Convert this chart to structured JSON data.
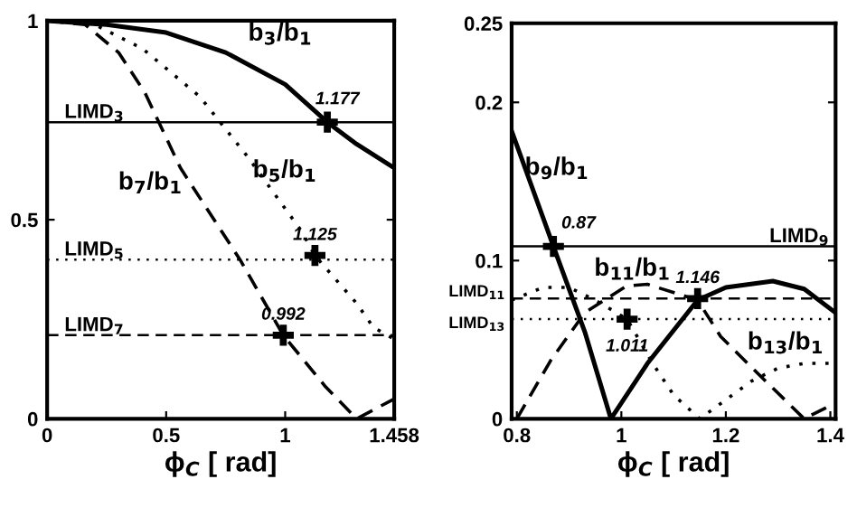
{
  "chart_data": [
    {
      "type": "line",
      "xlabel": "ϕ$_{C}$ [ rad]",
      "xlim": [
        0,
        1.458
      ],
      "ylim": [
        0,
        1
      ],
      "xticks": [
        0,
        0.5,
        1,
        1.458
      ],
      "yticks": [
        0,
        0.5,
        1
      ],
      "grid": false,
      "series": [
        {
          "name": "b$_{3}$/b$_{1}$",
          "color": "#000000",
          "line_style": "solid",
          "x": [
            0,
            0.25,
            0.5,
            0.75,
            1.0,
            1.177,
            1.3,
            1.458
          ],
          "values": [
            1,
            0.99,
            0.97,
            0.92,
            0.84,
            0.745,
            0.69,
            0.63
          ]
        },
        {
          "name": "b$_{5}$/b$_{1}$",
          "color": "#000000",
          "line_style": "dotted",
          "x": [
            0,
            0.2,
            0.4,
            0.64,
            0.84,
            1.07,
            1.125,
            1.3,
            1.37,
            1.458
          ],
          "values": [
            1,
            0.99,
            0.93,
            0.81,
            0.66,
            0.47,
            0.41,
            0.29,
            0.23,
            0.2
          ]
        },
        {
          "name": "b$_{7}$/b$_{1}$",
          "color": "#000000",
          "line_style": "dashed",
          "x": [
            0,
            0.16,
            0.3,
            0.41,
            0.56,
            0.81,
            0.992,
            1.17,
            1.3,
            1.458
          ],
          "values": [
            1,
            0.99,
            0.92,
            0.82,
            0.63,
            0.4,
            0.21,
            0.08,
            0,
            0.05
          ]
        },
        {
          "type": "scatter",
          "marker": "cross",
          "color": "#000000",
          "x": [
            1.177,
            1.125,
            0.992
          ],
          "values": [
            0.745,
            0.41,
            0.21
          ]
        }
      ],
      "ref_lines": [
        {
          "axis": "y",
          "value": 0.745,
          "label": "LIMD$_{3}$",
          "line_style": "solid"
        },
        {
          "axis": "y",
          "value": 0.4,
          "label": "LIMD$_{5}$",
          "line_style": "dotted"
        },
        {
          "axis": "y",
          "value": 0.21,
          "label": "LIMD$_{7}$",
          "line_style": "dashed"
        }
      ],
      "annotations": [
        {
          "text": "1.177",
          "x": 1.177,
          "y": 0.745
        },
        {
          "text": "1.125",
          "x": 1.125,
          "y": 0.41
        },
        {
          "text": "0.992",
          "x": 0.992,
          "y": 0.21
        }
      ]
    },
    {
      "type": "line",
      "xlabel": "ϕ$_{C}$ [ rad]",
      "xlim": [
        0.79,
        1.41
      ],
      "ylim": [
        0,
        0.25
      ],
      "xticks": [
        0.8,
        1,
        1.2,
        1.4
      ],
      "yticks": [
        0,
        0.1,
        0.2,
        0.25
      ],
      "grid": false,
      "series": [
        {
          "name": "b$_{9}$/b$_{1}$",
          "color": "#000000",
          "line_style": "solid",
          "x": [
            0.79,
            0.87,
            0.93,
            0.98,
            1.05,
            1.146,
            1.2,
            1.29,
            1.35,
            1.41
          ],
          "values": [
            0.182,
            0.109,
            0.055,
            0,
            0.035,
            0.075,
            0.083,
            0.087,
            0.082,
            0.067
          ]
        },
        {
          "name": "b$_{11}$/b$_{1}$",
          "color": "#000000",
          "line_style": "dashed",
          "x": [
            0.8,
            0.865,
            0.93,
            1.01,
            1.05,
            1.146,
            1.19,
            1.26,
            1.35,
            1.41
          ],
          "values": [
            0,
            0.037,
            0.067,
            0.084,
            0.085,
            0.075,
            0.052,
            0.029,
            0,
            0.01
          ]
        },
        {
          "name": "b$_{13}$/b$_{1}$",
          "color": "#000000",
          "line_style": "dotted",
          "x": [
            0.79,
            0.85,
            0.9,
            0.95,
            1.011,
            1.06,
            1.1,
            1.15,
            1.2,
            1.25,
            1.3,
            1.35,
            1.41
          ],
          "values": [
            0.075,
            0.083,
            0.083,
            0.075,
            0.063,
            0.035,
            0.015,
            0,
            0.012,
            0.024,
            0.032,
            0.035,
            0.035
          ]
        },
        {
          "type": "scatter",
          "marker": "cross",
          "color": "#000000",
          "x": [
            0.87,
            1.146,
            1.011
          ],
          "values": [
            0.109,
            0.076,
            0.063
          ]
        }
      ],
      "ref_lines": [
        {
          "axis": "y",
          "value": 0.109,
          "label": "LIMD$_{9}$",
          "line_style": "solid"
        },
        {
          "axis": "y",
          "value": 0.076,
          "label": "LIMD$_{11}$",
          "line_style": "dashed"
        },
        {
          "axis": "y",
          "value": 0.063,
          "label": "LIMD$_{13}$",
          "line_style": "dotted"
        }
      ],
      "annotations": [
        {
          "text": "0.87",
          "x": 0.87,
          "y": 0.109
        },
        {
          "text": "1.146",
          "x": 1.146,
          "y": 0.076
        },
        {
          "text": "1.011",
          "x": 1.011,
          "y": 0.063
        }
      ]
    }
  ]
}
